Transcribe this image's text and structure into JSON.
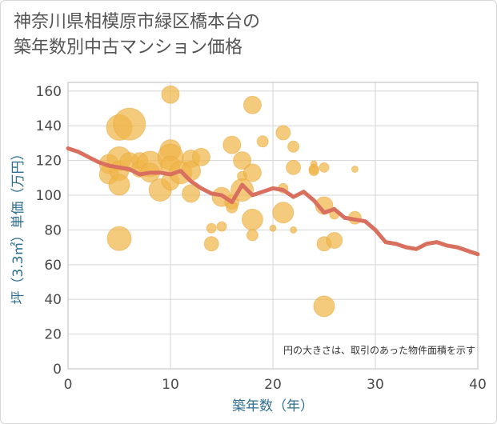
{
  "chart_data": {
    "type": "scatter",
    "title_lines": [
      "神奈川県相模原市緑区橋本台の",
      "築年数別中古マンション価格"
    ],
    "xlabel": "築年数（年）",
    "ylabel": "坪（3.3㎡）単価（万円）",
    "note": "円の大きさは、取引のあった物件面積を示す",
    "xlim": [
      0,
      40
    ],
    "ylim": [
      0,
      165
    ],
    "x_ticks": [
      "0",
      "10",
      "20",
      "30",
      "40"
    ],
    "y_ticks": [
      "0",
      "20",
      "40",
      "60",
      "80",
      "100",
      "120",
      "140",
      "160"
    ],
    "grid": true,
    "colors": {
      "bubble": "#f0b54a",
      "line": "#d9705f",
      "axis_label": "#2e6e8e"
    },
    "scatter": [
      {
        "x": 4,
        "y": 118,
        "size": 12
      },
      {
        "x": 4,
        "y": 112,
        "size": 12
      },
      {
        "x": 5,
        "y": 139,
        "size": 16
      },
      {
        "x": 5,
        "y": 121,
        "size": 15
      },
      {
        "x": 5,
        "y": 114,
        "size": 12
      },
      {
        "x": 5,
        "y": 106,
        "size": 13
      },
      {
        "x": 5,
        "y": 75,
        "size": 15
      },
      {
        "x": 6,
        "y": 141,
        "size": 20
      },
      {
        "x": 6,
        "y": 119,
        "size": 12
      },
      {
        "x": 7,
        "y": 120,
        "size": 10
      },
      {
        "x": 7,
        "y": 115,
        "size": 10
      },
      {
        "x": 8,
        "y": 118,
        "size": 16
      },
      {
        "x": 8,
        "y": 113,
        "size": 12
      },
      {
        "x": 9,
        "y": 103,
        "size": 14
      },
      {
        "x": 10,
        "y": 158,
        "size": 11
      },
      {
        "x": 10,
        "y": 126,
        "size": 13
      },
      {
        "x": 10,
        "y": 122,
        "size": 16
      },
      {
        "x": 10,
        "y": 117,
        "size": 12
      },
      {
        "x": 10,
        "y": 108,
        "size": 11
      },
      {
        "x": 11,
        "y": 113,
        "size": 14
      },
      {
        "x": 12,
        "y": 121,
        "size": 11
      },
      {
        "x": 12,
        "y": 114,
        "size": 12
      },
      {
        "x": 12,
        "y": 101,
        "size": 11
      },
      {
        "x": 13,
        "y": 122,
        "size": 11
      },
      {
        "x": 14,
        "y": 81,
        "size": 6
      },
      {
        "x": 14,
        "y": 72,
        "size": 9
      },
      {
        "x": 15,
        "y": 99,
        "size": 12
      },
      {
        "x": 15,
        "y": 82,
        "size": 6
      },
      {
        "x": 16,
        "y": 129,
        "size": 11
      },
      {
        "x": 16,
        "y": 96,
        "size": 9
      },
      {
        "x": 16,
        "y": 93,
        "size": 7
      },
      {
        "x": 17,
        "y": 120,
        "size": 11
      },
      {
        "x": 17,
        "y": 111,
        "size": 6
      },
      {
        "x": 17,
        "y": 103,
        "size": 14
      },
      {
        "x": 18,
        "y": 152,
        "size": 11
      },
      {
        "x": 18,
        "y": 113,
        "size": 11
      },
      {
        "x": 18,
        "y": 86,
        "size": 13
      },
      {
        "x": 18,
        "y": 77,
        "size": 7
      },
      {
        "x": 19,
        "y": 131,
        "size": 7
      },
      {
        "x": 20,
        "y": 81,
        "size": 4
      },
      {
        "x": 21,
        "y": 136,
        "size": 9
      },
      {
        "x": 21,
        "y": 104,
        "size": 6
      },
      {
        "x": 21,
        "y": 90,
        "size": 13
      },
      {
        "x": 22,
        "y": 128,
        "size": 7
      },
      {
        "x": 22,
        "y": 116,
        "size": 9
      },
      {
        "x": 22,
        "y": 80,
        "size": 4
      },
      {
        "x": 24,
        "y": 118,
        "size": 4
      },
      {
        "x": 24,
        "y": 115,
        "size": 6
      },
      {
        "x": 24,
        "y": 114,
        "size": 6
      },
      {
        "x": 25,
        "y": 116,
        "size": 6
      },
      {
        "x": 25,
        "y": 94,
        "size": 11
      },
      {
        "x": 25,
        "y": 72,
        "size": 9
      },
      {
        "x": 25,
        "y": 36,
        "size": 13
      },
      {
        "x": 26,
        "y": 89,
        "size": 6
      },
      {
        "x": 26,
        "y": 74,
        "size": 10
      },
      {
        "x": 28,
        "y": 115,
        "size": 4
      },
      {
        "x": 28,
        "y": 87,
        "size": 8
      }
    ],
    "line": {
      "x": [
        0,
        1,
        2,
        3,
        4,
        5,
        6,
        7,
        8,
        9,
        10,
        11,
        12,
        13,
        14,
        15,
        16,
        17,
        18,
        19,
        20,
        21,
        22,
        23,
        24,
        25,
        26,
        27,
        28,
        29,
        30,
        31,
        32,
        33,
        34,
        35,
        36,
        37,
        38,
        39,
        40
      ],
      "y": [
        127,
        125,
        122,
        119,
        117,
        116,
        115,
        112,
        113,
        113,
        112,
        114,
        108,
        104,
        101,
        100,
        96,
        106,
        100,
        102,
        104,
        103,
        99,
        102,
        97,
        90,
        92,
        87,
        86,
        85,
        80,
        73,
        72,
        70,
        69,
        72,
        73,
        71,
        70,
        68,
        66
      ]
    }
  }
}
